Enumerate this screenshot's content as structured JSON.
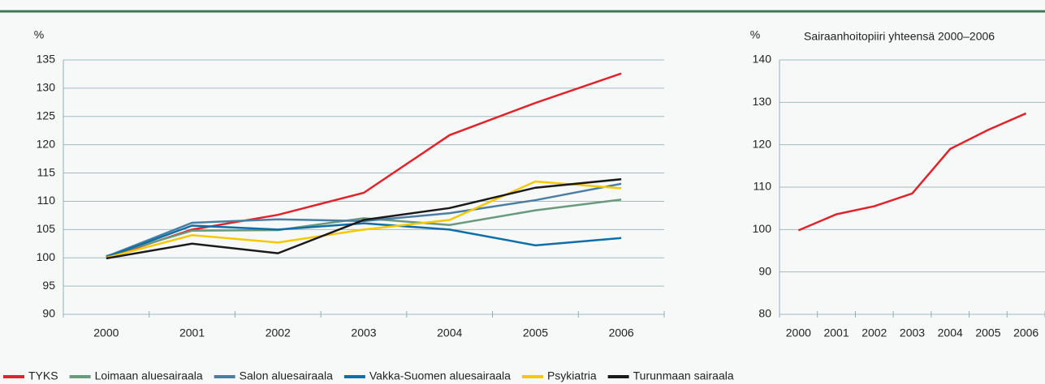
{
  "chart_data": [
    {
      "type": "line",
      "y_label": "%",
      "categories": [
        "2000",
        "2001",
        "2002",
        "2003",
        "2004",
        "2005",
        "2006"
      ],
      "ylim": [
        90,
        135
      ],
      "yticks": [
        90,
        95,
        100,
        105,
        110,
        115,
        120,
        125,
        130,
        135
      ],
      "grid": true,
      "legend": "bottom",
      "series": [
        {
          "name": "TYKS",
          "color": "#e0242b",
          "values": [
            100,
            105,
            107.6,
            111.5,
            121.7,
            127.4,
            132.6
          ]
        },
        {
          "name": "Loimaan aluesairaala",
          "color": "#6a9a7e",
          "values": [
            100.3,
            104.8,
            104.9,
            107,
            105.8,
            108.4,
            110.3
          ]
        },
        {
          "name": "Salon aluesairaala",
          "color": "#4a7fa3",
          "values": [
            100.2,
            106.2,
            106.8,
            106.5,
            107.9,
            110.2,
            113.1
          ]
        },
        {
          "name": "Vakka-Suomen aluesairaala",
          "color": "#0e6ea8",
          "values": [
            100.1,
            105.7,
            105,
            106.1,
            105,
            102.2,
            103.5
          ]
        },
        {
          "name": "Psykiatria",
          "color": "#f5c800",
          "values": [
            100,
            104,
            102.7,
            105,
            106.7,
            113.5,
            112.3
          ]
        },
        {
          "name": "Turunmaan sairaala",
          "color": "#1a1a1a",
          "values": [
            99.9,
            102.5,
            100.8,
            106.7,
            108.8,
            112.4,
            113.9
          ]
        }
      ]
    },
    {
      "type": "line",
      "y_label": "%",
      "title": "Sairaanhoitopiiri yhteensä 2000–2006",
      "categories": [
        "2000",
        "2001",
        "2002",
        "2003",
        "2004",
        "2005",
        "2006"
      ],
      "ylim": [
        80,
        140
      ],
      "yticks": [
        80,
        90,
        100,
        110,
        120,
        130,
        140
      ],
      "grid": true,
      "color": "#e0242b",
      "values": [
        99.8,
        103.6,
        105.5,
        108.5,
        119,
        123.5,
        127.4
      ]
    }
  ]
}
